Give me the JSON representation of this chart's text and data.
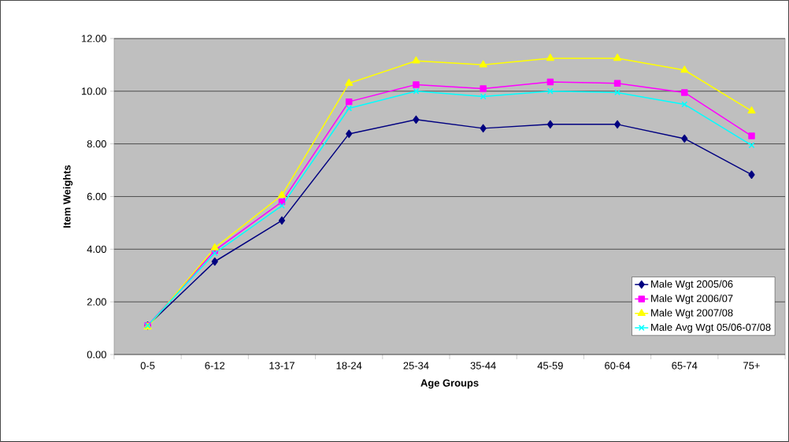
{
  "chart_data": {
    "type": "line",
    "xlabel": "Age Groups",
    "ylabel": "Item Weights",
    "categories": [
      "0-5",
      "6-12",
      "13-17",
      "18-24",
      "25-34",
      "35-44",
      "45-59",
      "60-64",
      "65-74",
      "75+"
    ],
    "series": [
      {
        "name": "Male Wgt 2005/06",
        "color": "#000080",
        "marker": "diamond",
        "values": [
          1.1,
          3.53,
          5.09,
          8.38,
          8.92,
          8.59,
          8.74,
          8.74,
          8.2,
          6.83
        ]
      },
      {
        "name": "Male Wgt 2006/07",
        "color": "#ff00ff",
        "marker": "square",
        "values": [
          1.1,
          3.95,
          5.8,
          9.6,
          10.25,
          10.1,
          10.35,
          10.3,
          9.95,
          8.3
        ]
      },
      {
        "name": "Male Wgt 2007/08",
        "color": "#ffff00",
        "marker": "triangle",
        "values": [
          1.05,
          4.05,
          6.05,
          10.3,
          11.15,
          11.0,
          11.25,
          11.25,
          10.8,
          9.25
        ]
      },
      {
        "name": "Male Avg Wgt 05/06-07/08",
        "color": "#00ffff",
        "marker": "cross",
        "values": [
          1.1,
          3.85,
          5.65,
          9.35,
          10.0,
          9.8,
          10.0,
          9.95,
          9.5,
          7.95
        ]
      }
    ],
    "ylim": [
      0,
      12
    ],
    "yticks": [
      {
        "value": 0,
        "label": "0.00"
      },
      {
        "value": 2,
        "label": "2.00"
      },
      {
        "value": 4,
        "label": "4.00"
      },
      {
        "value": 6,
        "label": "6.00"
      },
      {
        "value": 8,
        "label": "8.00"
      },
      {
        "value": 10,
        "label": "10.00"
      },
      {
        "value": 12,
        "label": "12.00"
      }
    ],
    "grid": "y",
    "legend": "bottom right",
    "line_style": "solid"
  }
}
